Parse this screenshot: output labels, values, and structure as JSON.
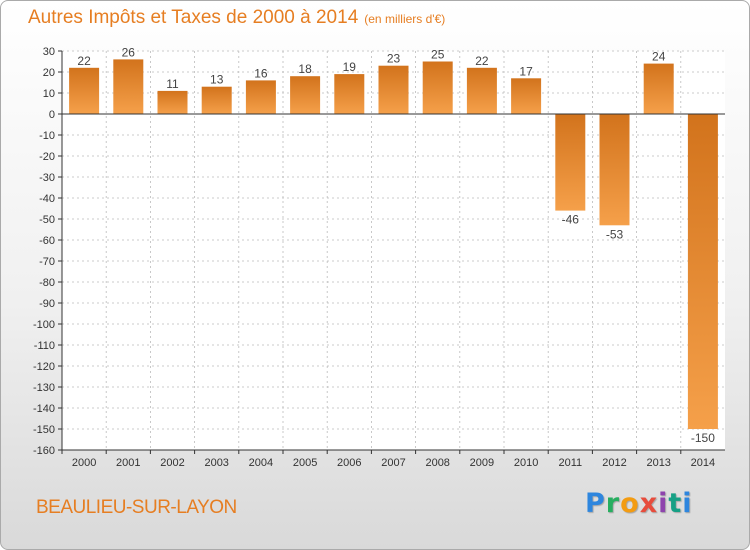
{
  "title": "Autres Impôts et Taxes de 2000 à 2014",
  "title_unit": "(en milliers d'€)",
  "commune": "BEAULIEU-SUR-LAYON",
  "logo": {
    "letters": [
      "P",
      "r",
      "o",
      "x",
      "i",
      "t",
      "i"
    ]
  },
  "colors": {
    "bar_light": "#f5a04a",
    "bar_dark": "#d2731c",
    "title": "#e67e22",
    "axis": "#333333",
    "grid": "#bbbbbb"
  },
  "chart_data": {
    "type": "bar",
    "categories": [
      "2000",
      "2001",
      "2002",
      "2003",
      "2004",
      "2005",
      "2006",
      "2007",
      "2008",
      "2009",
      "2010",
      "2011",
      "2012",
      "2013",
      "2014"
    ],
    "values": [
      22,
      26,
      11,
      13,
      16,
      18,
      19,
      23,
      25,
      22,
      17,
      -46,
      -53,
      24,
      -150
    ],
    "ylim": [
      -160,
      30
    ],
    "yticks": [
      30,
      20,
      10,
      0,
      -10,
      -20,
      -30,
      -40,
      -50,
      -60,
      -70,
      -80,
      -90,
      -100,
      -110,
      -120,
      -130,
      -140,
      -150,
      -160
    ],
    "grid": true,
    "xlabel": "",
    "ylabel": ""
  }
}
